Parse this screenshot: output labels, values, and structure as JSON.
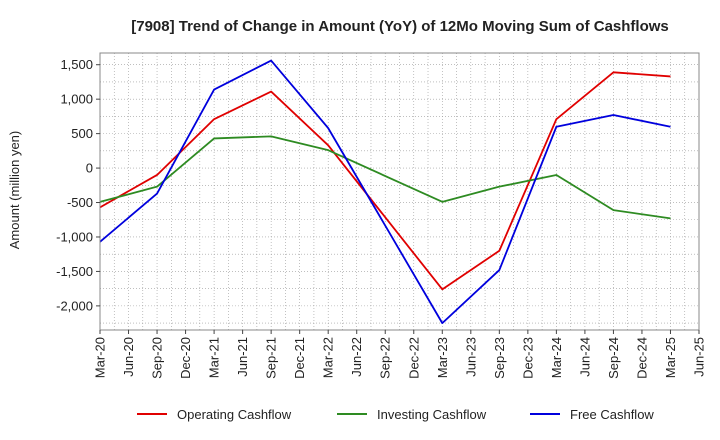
{
  "chart_data": {
    "type": "line",
    "title": "[7908]  Trend of Change in Amount (YoY) of 12Mo Moving Sum of Cashflows",
    "xlabel": "",
    "ylabel": "Amount (million yen)",
    "ylim": [
      -2350,
      1670
    ],
    "yticks": [
      1500,
      1000,
      500,
      0,
      -500,
      -1000,
      -1500,
      -2000
    ],
    "ytick_labels": [
      "1,500",
      "1,000",
      "500",
      "0",
      "-500",
      "-1,000",
      "-1,500",
      "-2,000"
    ],
    "x": [
      "Mar-20",
      "Jun-20",
      "Sep-20",
      "Dec-20",
      "Mar-21",
      "Jun-21",
      "Sep-21",
      "Dec-21",
      "Mar-22",
      "Jun-22",
      "Sep-22",
      "Dec-22",
      "Mar-23",
      "Jun-23",
      "Sep-23",
      "Dec-23",
      "Mar-24",
      "Jun-24",
      "Sep-24",
      "Dec-24",
      "Mar-25",
      "Jun-25"
    ],
    "grid": true,
    "legend_position": "bottom",
    "series": [
      {
        "name": "Operating Cashflow",
        "color": "#e00000",
        "points": [
          [
            0,
            -570
          ],
          [
            2,
            -100
          ],
          [
            4,
            710
          ],
          [
            6,
            1110
          ],
          [
            8,
            330
          ],
          [
            12,
            -1760
          ],
          [
            14,
            -1200
          ],
          [
            16,
            710
          ],
          [
            18,
            1390
          ],
          [
            20,
            1330
          ]
        ]
      },
      {
        "name": "Investing Cashflow",
        "color": "#2e8b22",
        "points": [
          [
            0,
            -490
          ],
          [
            2,
            -270
          ],
          [
            4,
            430
          ],
          [
            6,
            460
          ],
          [
            8,
            260
          ],
          [
            12,
            -490
          ],
          [
            14,
            -270
          ],
          [
            16,
            -100
          ],
          [
            18,
            -610
          ],
          [
            20,
            -730
          ]
        ]
      },
      {
        "name": "Free Cashflow",
        "color": "#0000dd",
        "points": [
          [
            0,
            -1070
          ],
          [
            2,
            -370
          ],
          [
            4,
            1140
          ],
          [
            6,
            1560
          ],
          [
            8,
            580
          ],
          [
            12,
            -2250
          ],
          [
            14,
            -1480
          ],
          [
            16,
            600
          ],
          [
            18,
            770
          ],
          [
            20,
            600
          ]
        ]
      }
    ]
  }
}
